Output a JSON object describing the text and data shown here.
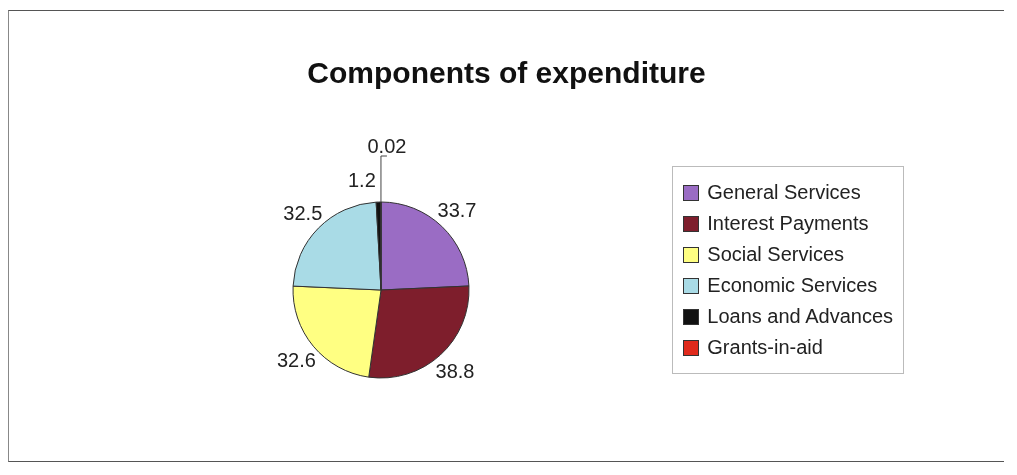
{
  "chart_data": {
    "type": "pie",
    "title": "Components of expenditure",
    "categories": [
      "General Services",
      "Interest Payments",
      "Social Services",
      "Economic Services",
      "Loans and Advances",
      "Grants-in-aid"
    ],
    "values": [
      33.7,
      38.8,
      32.6,
      32.5,
      1.2,
      0.02
    ],
    "colors": [
      "#9a6cc4",
      "#7e1e2c",
      "#ffff82",
      "#a9dbe6",
      "#111111",
      "#e02a1c"
    ],
    "data_labels": true,
    "legend": "right"
  }
}
